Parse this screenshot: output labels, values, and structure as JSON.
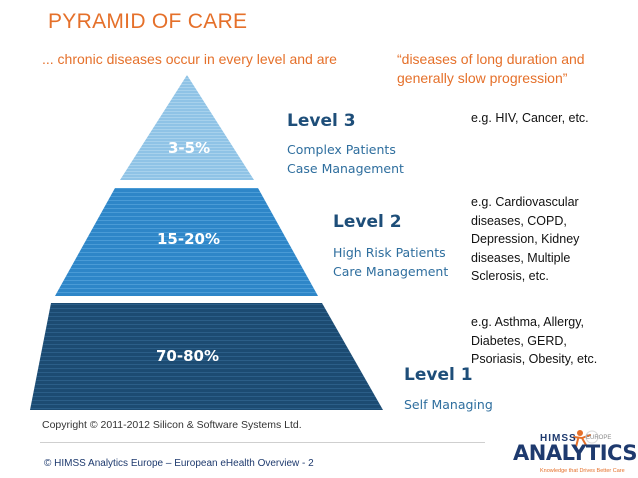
{
  "title": "PYRAMID OF CARE",
  "subtitle": {
    "left": "... chronic diseases occur in every level and are",
    "right": "“diseases of long duration and generally slow progression”"
  },
  "levels": [
    {
      "heading": "Level 3",
      "line1": "Complex Patients",
      "line2": "Case Management",
      "percent": "3-5%",
      "example": "e.g. HIV, Cancer, etc."
    },
    {
      "heading": "Level 2",
      "line1": "High Risk Patients",
      "line2": "Care Management",
      "percent": "15-20%",
      "example": "e.g. Cardiovascular diseases, COPD, Depression, Kidney diseases, Multiple Sclerosis, etc."
    },
    {
      "heading": "Level 1",
      "line1": "Self Managing",
      "percent": "70-80%",
      "example": "e.g. Asthma, Allergy, Diabetes, GERD, Psoriasis, Obesity, etc."
    }
  ],
  "colors": {
    "accent": "#E5702A",
    "tier_top": "#8FC3E6",
    "tier_mid": "#2E86C8",
    "tier_bottom": "#1C4B72",
    "heading": "#1E4E79"
  },
  "copyright": "Copyright © 2011-2012 Silicon & Software Systems Ltd.",
  "footer": "© HIMSS Analytics Europe – European eHealth Overview - 2",
  "logo": {
    "brand": "HIMSS",
    "region": "EUROPE",
    "name": "ANALYTICS",
    "tagline": "Knowledge that Drives Better Care"
  }
}
